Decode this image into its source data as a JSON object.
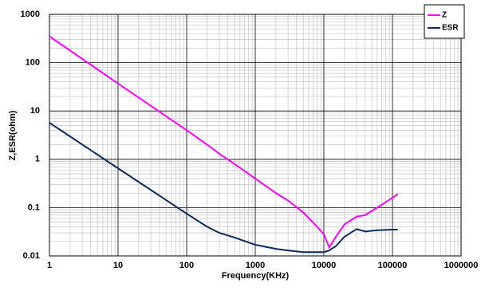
{
  "chart_data": {
    "type": "line",
    "x_label": "Frequency(KHz)",
    "y_label": "Z,ESR(ohm)",
    "x": [
      1,
      10,
      100,
      200,
      300,
      500,
      1000,
      2000,
      3000,
      5000,
      8000,
      10000,
      12000,
      15000,
      20000,
      30000,
      40000,
      60000,
      100000,
      120000
    ],
    "series": [
      {
        "name": "Z",
        "color": "#ff00ff",
        "values": [
          350,
          37,
          4,
          2,
          1.3,
          0.8,
          0.4,
          0.2,
          0.14,
          0.08,
          0.04,
          0.028,
          0.015,
          0.025,
          0.045,
          0.065,
          0.07,
          0.1,
          0.16,
          0.19
        ]
      },
      {
        "name": "ESR",
        "color": "#0a2a5e",
        "values": [
          5.7,
          0.65,
          0.075,
          0.04,
          0.03,
          0.024,
          0.017,
          0.014,
          0.013,
          0.012,
          0.012,
          0.012,
          0.013,
          0.016,
          0.025,
          0.036,
          0.032,
          0.034,
          0.035,
          0.035
        ]
      }
    ],
    "xlim": [
      1,
      1000000
    ],
    "xticks": [
      1,
      10,
      100,
      1000,
      10000,
      100000,
      1000000
    ],
    "ylim": [
      0.01,
      1000
    ],
    "yticks": [
      0.01,
      0.1,
      1,
      10,
      100,
      1000
    ],
    "x_log": true,
    "y_log": true,
    "grid": true,
    "legend": "top-right"
  }
}
